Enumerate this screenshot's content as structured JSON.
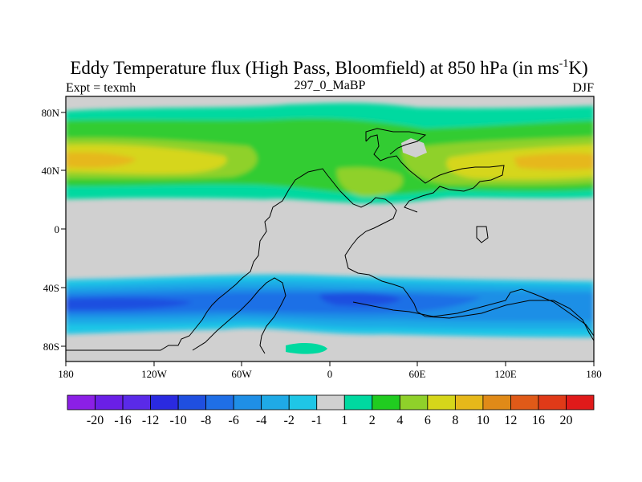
{
  "title_main": "Eddy Temperature flux (High Pass, Bloomfield) at 850 hPa (in ms",
  "title_sup": "-1",
  "title_end": "K)",
  "expt_label": "Expt = texmh",
  "subtitle": "297_0_MaBP",
  "season": "DJF",
  "lon_ticks": [
    "180",
    "120W",
    "60W",
    "0",
    "60E",
    "120E",
    "180"
  ],
  "lat_ticks": [
    "80N",
    "40N",
    "0",
    "40S",
    "80S"
  ],
  "colorbar": {
    "colors": [
      "#8b1fe6",
      "#6a1fe6",
      "#5a2ae8",
      "#2a2ae0",
      "#1f4fe0",
      "#1f6fe6",
      "#1f8fe6",
      "#1faae6",
      "#1fc6e6",
      "#d0d0d0",
      "#00d9a0",
      "#20cc20",
      "#8fd12a",
      "#d6d61a",
      "#e6b81a",
      "#e08a18",
      "#e05a18",
      "#e03a18",
      "#e01a1a"
    ],
    "labels": [
      "-20",
      "-16",
      "-12",
      "-10",
      "-8",
      "-6",
      "-4",
      "-2",
      "-1",
      "1",
      "2",
      "4",
      "6",
      "8",
      "10",
      "12",
      "16",
      "20"
    ]
  }
}
